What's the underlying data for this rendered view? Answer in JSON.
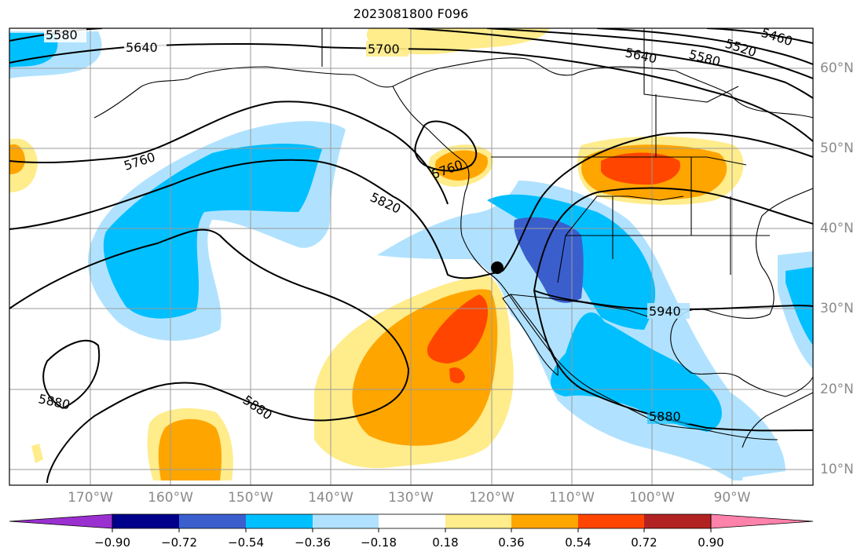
{
  "title": "2023081800 F096",
  "marker_label": "",
  "longitude_labels": [
    "170°W",
    "160°W",
    "150°W",
    "140°W",
    "130°W",
    "120°W",
    "110°W",
    "100°W",
    "90°W"
  ],
  "latitude_labels": [
    "60°N",
    "50°N",
    "40°N",
    "30°N",
    "20°N",
    "10°N"
  ],
  "contour_labels": [
    "5580",
    "5640",
    "5700",
    "5760",
    "5820",
    "5880",
    "5880",
    "5940",
    "5880",
    "5760",
    "5640",
    "5580",
    "5520",
    "5460"
  ],
  "colorbar": {
    "tick_labels": [
      "−0.90",
      "−0.72",
      "−0.54",
      "−0.36",
      "−0.18",
      "0.18",
      "0.36",
      "0.54",
      "0.72",
      "0.90"
    ],
    "colors": [
      "#9b30d0",
      "#00008b",
      "#3a5fcd",
      "#00bfff",
      "#b0e2ff",
      "#ffffff",
      "#ffec8b",
      "#ffa500",
      "#ff4500",
      "#b22222",
      "#ff82ab"
    ]
  },
  "chart_data": {
    "type": "contour_map",
    "title": "2023081800 F096",
    "projection": "PlateCarree",
    "lon_range": [
      -180,
      -80
    ],
    "lat_range": [
      7,
      64
    ],
    "shading_levels": [
      -0.9,
      -0.72,
      -0.54,
      -0.36,
      -0.18,
      0.18,
      0.36,
      0.54,
      0.72,
      0.9
    ],
    "contour_levels": [
      5460,
      5520,
      5580,
      5640,
      5700,
      5760,
      5820,
      5880,
      5940
    ],
    "marker": {
      "lon": -119.5,
      "lat": 35
    }
  }
}
